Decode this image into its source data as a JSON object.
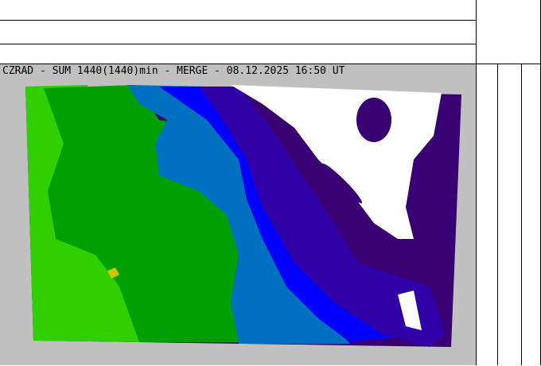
{
  "map": {
    "title": "CZRAD - SUM 1440(1440)min - MERGE - 08.12.2025 16:50 UT",
    "colors": {
      "background": "#c0c0c0",
      "no_precip": "#ffffff",
      "light_green": "#30d000",
      "green": "#00a000",
      "steel_blue": "#0070c0",
      "blue": "#0000fc",
      "purple": "#3000a8",
      "dark_purple": "#380070",
      "yellow": "#c8c800"
    }
  }
}
